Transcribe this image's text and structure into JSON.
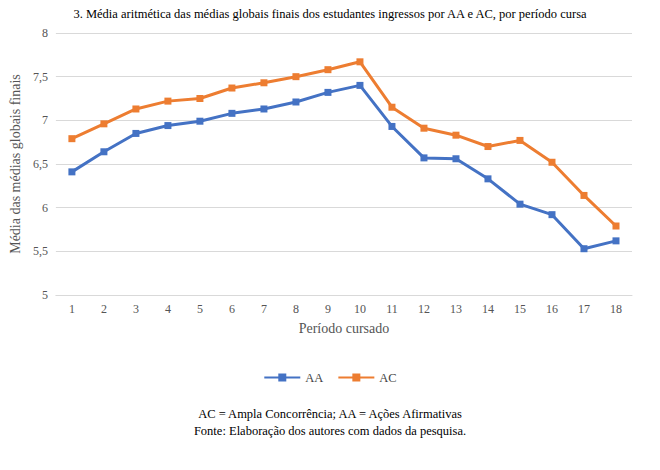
{
  "chart_data": {
    "type": "line",
    "title": "3. Média aritmética das médias globais finais dos estudantes ingressos por AA e AC, por período cursa",
    "x_label": "Período cursado",
    "y_label": "Média das médias globais finais",
    "categories": [
      "1",
      "2",
      "3",
      "4",
      "5",
      "6",
      "7",
      "8",
      "9",
      "10",
      "11",
      "12",
      "13",
      "14",
      "15",
      "16",
      "17",
      "18"
    ],
    "series": [
      {
        "name": "AA",
        "color": "#4472c4",
        "marker": "square",
        "line_style": "solid",
        "values": [
          6.41,
          6.64,
          6.85,
          6.94,
          6.99,
          7.08,
          7.13,
          7.21,
          7.32,
          7.4,
          6.93,
          6.57,
          6.56,
          6.33,
          6.04,
          5.92,
          5.53,
          5.62
        ]
      },
      {
        "name": "AC",
        "color": "#ed7d31",
        "marker": "square",
        "line_style": "solid",
        "values": [
          6.79,
          6.96,
          7.13,
          7.22,
          7.25,
          7.37,
          7.43,
          7.5,
          7.58,
          7.67,
          7.15,
          6.91,
          6.83,
          6.7,
          6.77,
          6.52,
          6.14,
          5.79
        ]
      }
    ],
    "ylim": [
      5,
      8
    ],
    "yticks": [
      5,
      {
        "value": 5.5,
        "label": "5,5"
      },
      6,
      {
        "value": 6.5,
        "label": "6,5"
      },
      7,
      {
        "value": 7.5,
        "label": "7,5"
      },
      8
    ],
    "grid": true,
    "legend": "bottom",
    "annotations": [
      "AC = Ampla Concorrência; AA = Ações Afirmativas",
      "Fonte: Elaboração dos autores com dados da pesquisa."
    ]
  }
}
